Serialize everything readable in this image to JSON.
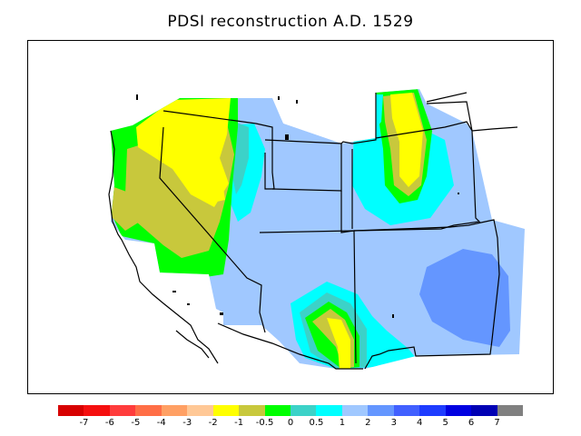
{
  "title": "PDSI reconstruction A.D. 1529",
  "legend": {
    "colors": [
      "#d70000",
      "#f50f0f",
      "#ff3c3c",
      "#ff6e46",
      "#ffa064",
      "#ffc896",
      "#ffff00",
      "#c8c83c",
      "#00ff00",
      "#3cd2c8",
      "#00ffff",
      "#a0c8ff",
      "#6496ff",
      "#4160ff",
      "#1e3cff",
      "#0000e1",
      "#0000b4",
      "#808080"
    ],
    "labels": [
      "-7",
      "-6",
      "-5",
      "-4",
      "-3",
      "-2",
      "-1",
      "-0.5",
      "0",
      "0.5",
      "1",
      "2",
      "3",
      "4",
      "5",
      "6",
      "7"
    ]
  }
}
